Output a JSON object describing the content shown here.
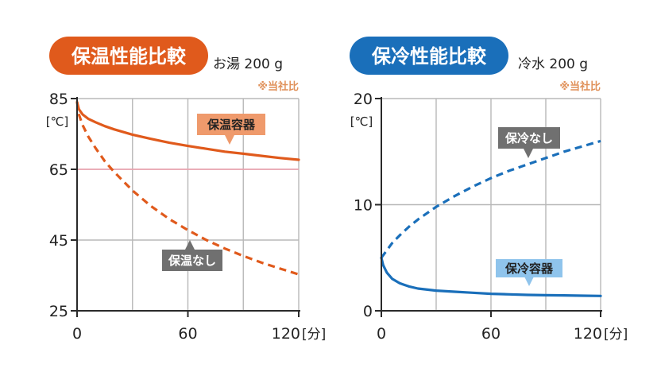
{
  "colors": {
    "warm": "#e05a1c",
    "cold": "#1a6fba",
    "note": "#e0915a",
    "pink_line": "#f0a0ad",
    "grid": "#b8b8b8",
    "axis": "#2a2a2a",
    "gray_label": "#707070",
    "warm_label": "#ef9a6c",
    "cold_label": "#8fc4ec"
  },
  "charts": {
    "warm": {
      "title": "保温性能比較",
      "condition": "お湯 200 g",
      "note": "※当社比",
      "ylabel": "[℃]",
      "xunit": "[分]",
      "label_container": "保温容器",
      "label_none": "保温なし"
    },
    "cold": {
      "title": "保冷性能比較",
      "condition": "冷水 200 g",
      "note": "※当社比",
      "ylabel": "[℃]",
      "xunit": "[分]",
      "label_container": "保冷容器",
      "label_none": "保冷なし"
    }
  },
  "chart_data": [
    {
      "type": "line",
      "title": "保温性能比較",
      "subtitle": "お湯 200 g",
      "note": "※当社比",
      "ylabel": "[℃]",
      "xlabel": "[分]",
      "xlim": [
        0,
        120
      ],
      "ylim": [
        25,
        85
      ],
      "xticks": [
        0,
        60,
        120
      ],
      "yticks": [
        25,
        45,
        65,
        85
      ],
      "grid": true,
      "reference_line": 65,
      "series": [
        {
          "name": "保温容器",
          "style": "solid",
          "x": [
            0,
            1,
            3,
            6,
            10,
            15,
            20,
            30,
            40,
            50,
            60,
            70,
            80,
            90,
            100,
            110,
            120
          ],
          "y": [
            84,
            82,
            80.5,
            79.3,
            78.3,
            77.2,
            76.3,
            74.8,
            73.6,
            72.5,
            71.6,
            70.8,
            70.0,
            69.4,
            68.8,
            68.2,
            67.7
          ]
        },
        {
          "name": "保温なし",
          "style": "dashed",
          "x": [
            0,
            1,
            3,
            6,
            10,
            15,
            20,
            30,
            40,
            50,
            60,
            70,
            80,
            90,
            100,
            110,
            120
          ],
          "y": [
            84,
            80.5,
            77.5,
            74.3,
            71.0,
            67.3,
            64.3,
            59.0,
            54.6,
            50.9,
            47.8,
            45.0,
            42.6,
            40.5,
            38.6,
            36.9,
            35.3
          ]
        }
      ]
    },
    {
      "type": "line",
      "title": "保冷性能比較",
      "subtitle": "冷水 200 g",
      "note": "※当社比",
      "ylabel": "[℃]",
      "xlabel": "[分]",
      "xlim": [
        0,
        120
      ],
      "ylim": [
        0,
        20
      ],
      "xticks": [
        0,
        60,
        120
      ],
      "yticks": [
        0,
        10,
        20
      ],
      "grid": true,
      "series": [
        {
          "name": "保冷なし",
          "style": "dashed",
          "x": [
            0,
            3,
            6,
            10,
            15,
            20,
            30,
            40,
            50,
            60,
            70,
            80,
            90,
            100,
            110,
            120
          ],
          "y": [
            5.0,
            5.7,
            6.4,
            7.1,
            7.9,
            8.6,
            9.8,
            10.8,
            11.7,
            12.5,
            13.2,
            13.8,
            14.4,
            15.0,
            15.5,
            16.0
          ]
        },
        {
          "name": "保冷容器",
          "style": "solid",
          "x": [
            0,
            1,
            3,
            6,
            10,
            15,
            20,
            30,
            40,
            50,
            60,
            70,
            80,
            90,
            100,
            110,
            120
          ],
          "y": [
            5.0,
            4.3,
            3.6,
            3.0,
            2.6,
            2.3,
            2.1,
            1.9,
            1.8,
            1.7,
            1.6,
            1.55,
            1.5,
            1.47,
            1.45,
            1.42,
            1.4
          ]
        }
      ]
    }
  ]
}
